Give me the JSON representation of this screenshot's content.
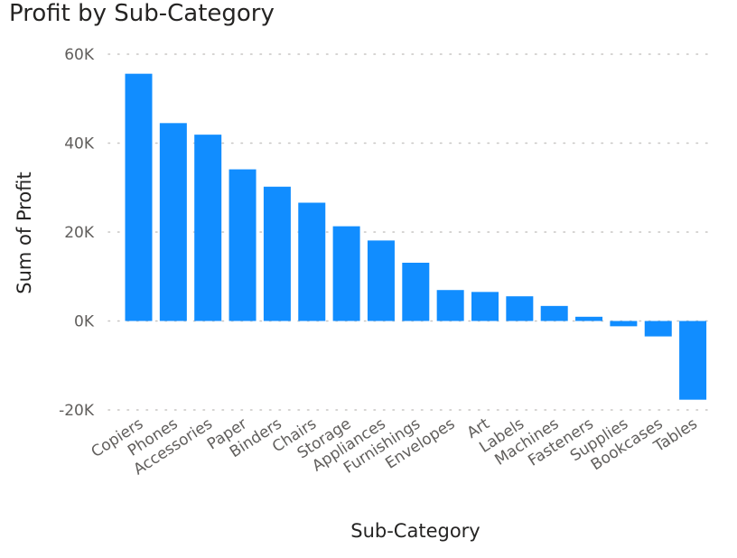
{
  "chart_data": {
    "type": "bar",
    "title": "Profit by Sub-Category",
    "xlabel": "Sub-Category",
    "ylabel": "Sum of Profit",
    "categories": [
      "Copiers",
      "Phones",
      "Accessories",
      "Paper",
      "Binders",
      "Chairs",
      "Storage",
      "Appliances",
      "Furnishings",
      "Envelopes",
      "Art",
      "Labels",
      "Machines",
      "Fasteners",
      "Supplies",
      "Bookcases",
      "Tables"
    ],
    "values": [
      55600,
      44500,
      41900,
      34100,
      30200,
      26600,
      21300,
      18100,
      13100,
      6960,
      6530,
      5550,
      3380,
      950,
      -1190,
      -3470,
      -17700
    ],
    "ylim": [
      -20000,
      60000
    ],
    "yticks": [
      -20000,
      0,
      20000,
      40000,
      60000
    ],
    "ytick_labels": [
      "-20K",
      "0K",
      "20K",
      "40K",
      "60K"
    ],
    "grid": true,
    "bar_color": "#118dff"
  }
}
